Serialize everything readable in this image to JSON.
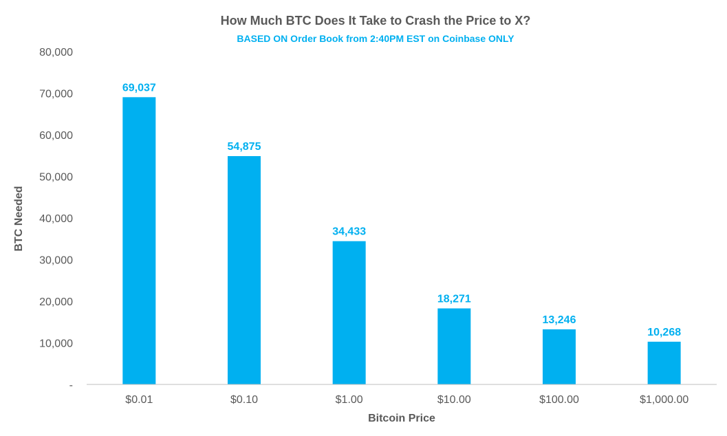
{
  "chart_data": {
    "type": "bar",
    "title": "How Much BTC Does It Take to Crash the Price to X?",
    "subtitle": "BASED ON Order Book from 2:40PM EST on Coinbase ONLY",
    "xlabel": "Bitcoin Price",
    "ylabel": "BTC Needed",
    "categories": [
      "$0.01",
      "$0.10",
      "$1.00",
      "$10.00",
      "$100.00",
      "$1,000.00"
    ],
    "values": [
      69037,
      54875,
      34433,
      18271,
      13246,
      10268
    ],
    "data_labels": [
      "69,037",
      "54,875",
      "34,433",
      "18,271",
      "13,246",
      "10,268"
    ],
    "ylim": [
      0,
      80000
    ],
    "yticks": [
      0,
      10000,
      20000,
      30000,
      40000,
      50000,
      60000,
      70000,
      80000
    ],
    "ytick_labels": [
      "-",
      "10,000",
      "20,000",
      "30,000",
      "40,000",
      "50,000",
      "60,000",
      "70,000",
      "80,000"
    ],
    "grid": false,
    "legend": "none",
    "bar_color": "#00b0f0",
    "label_color": "#00b0f0",
    "text_color": "#595959"
  }
}
